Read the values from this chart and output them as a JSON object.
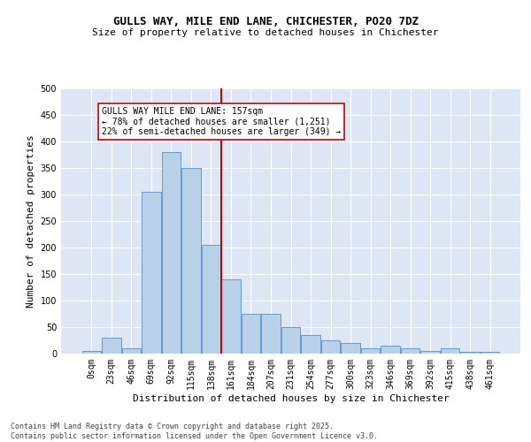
{
  "title": "GULLS WAY, MILE END LANE, CHICHESTER, PO20 7DZ",
  "subtitle": "Size of property relative to detached houses in Chichester",
  "xlabel": "Distribution of detached houses by size in Chichester",
  "ylabel": "Number of detached properties",
  "bar_labels": [
    "0sqm",
    "23sqm",
    "46sqm",
    "69sqm",
    "92sqm",
    "115sqm",
    "138sqm",
    "161sqm",
    "184sqm",
    "207sqm",
    "231sqm",
    "254sqm",
    "277sqm",
    "300sqm",
    "323sqm",
    "346sqm",
    "369sqm",
    "392sqm",
    "415sqm",
    "438sqm",
    "461sqm"
  ],
  "bar_values": [
    5,
    30,
    10,
    305,
    380,
    350,
    205,
    140,
    75,
    75,
    50,
    35,
    25,
    20,
    10,
    15,
    10,
    5,
    10,
    3,
    3
  ],
  "bar_color": "#b8d0e8",
  "bar_edge_color": "#6699cc",
  "vline_x_idx": 7,
  "vline_color": "#cc0000",
  "background_color": "#dce6f5",
  "grid_color": "#ffffff",
  "annotation_text": "GULLS WAY MILE END LANE: 157sqm\n← 78% of detached houses are smaller (1,251)\n22% of semi-detached houses are larger (349) →",
  "annotation_box_color": "white",
  "annotation_box_edge": "#cc0000",
  "footer_text": "Contains HM Land Registry data © Crown copyright and database right 2025.\nContains public sector information licensed under the Open Government Licence v3.0.",
  "ylim": [
    0,
    500
  ],
  "yticks": [
    0,
    50,
    100,
    150,
    200,
    250,
    300,
    350,
    400,
    450,
    500
  ],
  "title_fontsize": 9,
  "subtitle_fontsize": 8,
  "ylabel_fontsize": 8,
  "xlabel_fontsize": 8,
  "tick_fontsize": 7,
  "annotation_fontsize": 7,
  "footer_fontsize": 6
}
